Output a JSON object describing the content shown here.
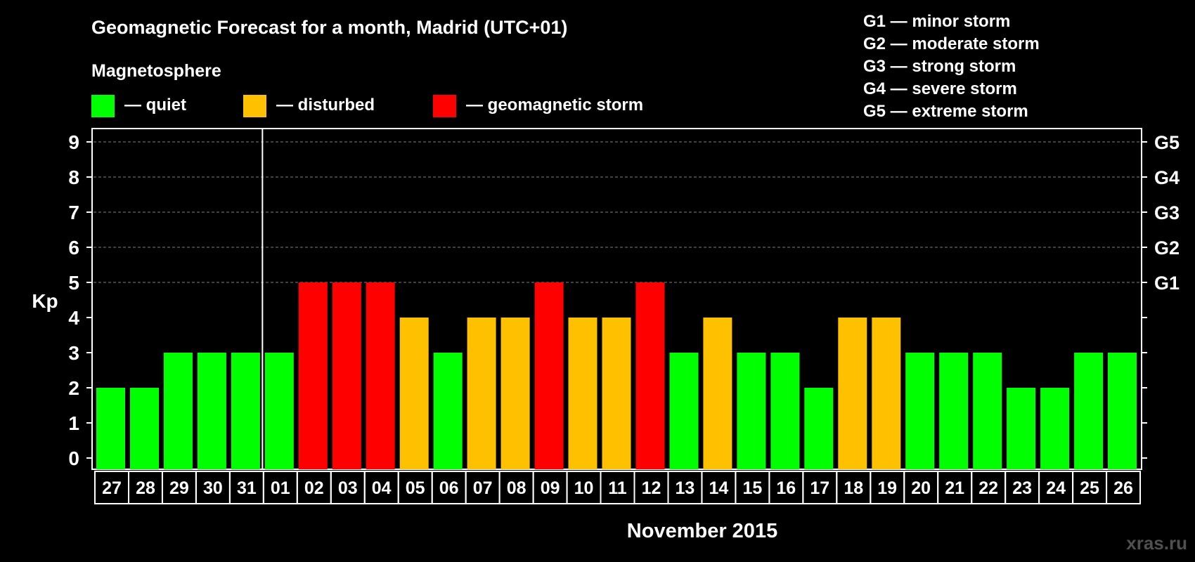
{
  "chart_data": {
    "type": "bar",
    "title": "Geomagnetic Forecast for a month, Madrid (UTC+01)",
    "ylabel": "Kp",
    "xlabel": "November 2015",
    "ylim": [
      0,
      9
    ],
    "yticks": [
      "0",
      "1",
      "2",
      "3",
      "4",
      "5",
      "6",
      "7",
      "8",
      "9"
    ],
    "grid": "dashed horizontal lines at Kp 5–9",
    "right_axis": [
      {
        "kp": 5,
        "label": "G1"
      },
      {
        "kp": 6,
        "label": "G2"
      },
      {
        "kp": 7,
        "label": "G3"
      },
      {
        "kp": 8,
        "label": "G4"
      },
      {
        "kp": 9,
        "label": "G5"
      }
    ],
    "legend": {
      "heading": "Magnetosphere",
      "items": [
        {
          "label": "— quiet",
          "color": "#00ff00"
        },
        {
          "label": "— disturbed",
          "color": "#ffc000"
        },
        {
          "label": "— geomagnetic storm",
          "color": "#ff0000"
        }
      ]
    },
    "storm_legend": [
      "G1 — minor storm",
      "G2 — moderate storm",
      "G3 — strong storm",
      "G4 — severe storm",
      "G5 — extreme storm"
    ],
    "categories": [
      "27",
      "28",
      "29",
      "30",
      "31",
      "01",
      "02",
      "03",
      "04",
      "05",
      "06",
      "07",
      "08",
      "09",
      "10",
      "11",
      "12",
      "13",
      "14",
      "15",
      "16",
      "17",
      "18",
      "19",
      "20",
      "21",
      "22",
      "23",
      "24",
      "25",
      "26"
    ],
    "values": [
      2,
      2,
      3,
      3,
      3,
      3,
      5,
      5,
      5,
      4,
      3,
      4,
      4,
      5,
      4,
      4,
      5,
      3,
      4,
      3,
      3,
      2,
      4,
      4,
      3,
      3,
      3,
      2,
      2,
      3,
      3
    ],
    "month_start_index": 5
  },
  "colors": {
    "quiet": "#00ff00",
    "disturbed": "#ffc000",
    "storm": "#ff0000",
    "background": "#000000",
    "axis": "#ffffff",
    "grid": "#808080"
  },
  "watermark": "xras.ru"
}
